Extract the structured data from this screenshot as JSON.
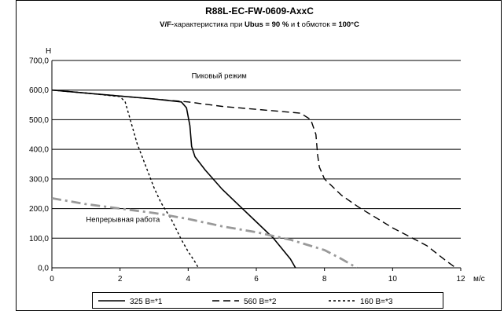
{
  "chart_data": {
    "type": "line",
    "title": "R88L-EC-FW-0609-AxxC",
    "subtitle_parts": [
      {
        "text": "V/F-",
        "bold": true
      },
      {
        "text": "характеристика при ",
        "bold": false
      },
      {
        "text": "Ubus = 90 %",
        "bold": true
      },
      {
        "text": " и ",
        "bold": false
      },
      {
        "text": "t",
        "bold": true
      },
      {
        "text": " обмоток ",
        "bold": false
      },
      {
        "text": "= 100°C",
        "bold": true
      }
    ],
    "xlabel": "м/с",
    "ylabel": "Н",
    "xlim": [
      0,
      12
    ],
    "ylim": [
      0,
      700
    ],
    "x_ticks": [
      0,
      2,
      4,
      6,
      8,
      10,
      12
    ],
    "x_tick_labels": [
      "0",
      "2",
      "4",
      "6",
      "8",
      "10",
      "12"
    ],
    "y_ticks": [
      0,
      100,
      200,
      300,
      400,
      500,
      600,
      700
    ],
    "y_tick_labels": [
      "0,0",
      "100,0",
      "200,0",
      "300,0",
      "400,0",
      "500,0",
      "600,0",
      "700,0"
    ],
    "grid": "horizontal",
    "legend_position": "bottom",
    "annotations": [
      {
        "text": "Пиковый режим",
        "x": 4.1,
        "y": 640
      },
      {
        "text": "Непрерывная работа",
        "x": 1.0,
        "y": 155
      }
    ],
    "series": [
      {
        "name": "325 В=*1",
        "style": "solid",
        "color": "#000000",
        "x": [
          0,
          2,
          3,
          3.8,
          3.95,
          4.05,
          4.1,
          4.2,
          4.5,
          5,
          5.5,
          6,
          6.5,
          7,
          7.15
        ],
        "y": [
          600,
          580,
          570,
          560,
          540,
          480,
          410,
          375,
          330,
          265,
          210,
          155,
          100,
          30,
          0
        ]
      },
      {
        "name": "560 В=*2",
        "style": "dashed",
        "color": "#000000",
        "x": [
          0,
          2,
          4,
          5,
          6,
          7.3,
          7.6,
          7.75,
          7.8,
          7.85,
          8,
          8.5,
          9,
          10,
          10.5,
          11,
          11.5,
          11.85
        ],
        "y": [
          600,
          580,
          560,
          545,
          535,
          522,
          500,
          450,
          380,
          340,
          300,
          245,
          205,
          135,
          105,
          75,
          30,
          0
        ]
      },
      {
        "name": "160 В=*3",
        "style": "dotted",
        "color": "#000000",
        "x": [
          0,
          1,
          2,
          2.15,
          2.3,
          2.5,
          2.8,
          3,
          3.2,
          3.5,
          3.8,
          4,
          4.2,
          4.3
        ],
        "y": [
          600,
          590,
          578,
          560,
          500,
          420,
          330,
          270,
          220,
          165,
          95,
          55,
          20,
          0
        ]
      },
      {
        "name": "Непрерывная работа",
        "style": "dashdot",
        "color": "#999999",
        "x": [
          0,
          1,
          2,
          3,
          4,
          5,
          6,
          7,
          8,
          8.5,
          8.95
        ],
        "y": [
          235,
          215,
          200,
          185,
          165,
          140,
          120,
          95,
          60,
          30,
          0
        ]
      }
    ]
  }
}
